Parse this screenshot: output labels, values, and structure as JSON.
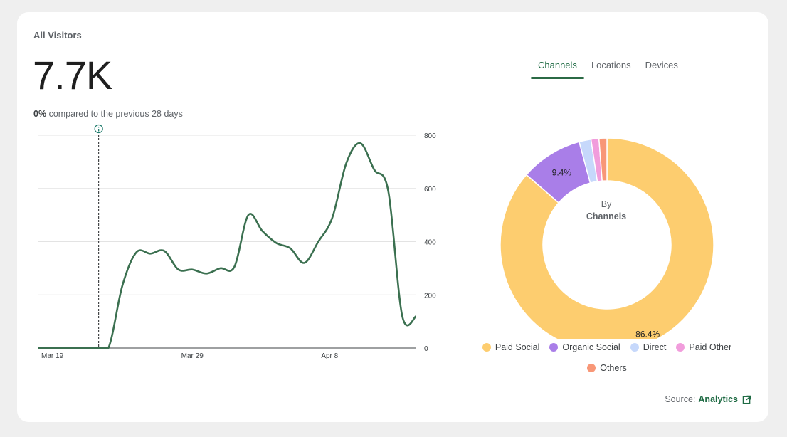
{
  "card": {
    "title": "All Visitors",
    "total": "7.7K",
    "change_pct": "0%",
    "change_text": "compared to the previous 28 days"
  },
  "tabs": [
    {
      "label": "Channels",
      "active": true
    },
    {
      "label": "Locations",
      "active": false
    },
    {
      "label": "Devices",
      "active": false
    }
  ],
  "donut_center": {
    "line1": "By",
    "line2": "Channels"
  },
  "source": {
    "prefix": "Source:",
    "link": "Analytics"
  },
  "colors": {
    "accent": "#2e6b47",
    "line": "#3b7050"
  },
  "chart_data": [
    {
      "type": "line",
      "x_ticks": [
        "Mar 19",
        "Mar 29",
        "Apr 8"
      ],
      "ylim": [
        0,
        800
      ],
      "y_ticks": [
        0,
        200,
        400,
        600,
        800
      ],
      "grid": true,
      "marker_x": "Mar 23",
      "series": [
        {
          "x": [
            "Mar 19",
            "Mar 20",
            "Mar 21",
            "Mar 22",
            "Mar 23",
            "Mar 24",
            "Mar 25",
            "Mar 26",
            "Mar 27",
            "Mar 28",
            "Mar 29",
            "Mar 30",
            "Mar 31",
            "Apr 1",
            "Apr 2",
            "Apr 3",
            "Apr 4",
            "Apr 5",
            "Apr 6",
            "Apr 7",
            "Apr 8",
            "Apr 9",
            "Apr 10",
            "Apr 11",
            "Apr 12",
            "Apr 13",
            "Apr 14",
            "Apr 15"
          ],
          "values": [
            0,
            0,
            0,
            0,
            0,
            0,
            235,
            360,
            355,
            365,
            295,
            295,
            280,
            300,
            305,
            500,
            440,
            395,
            375,
            320,
            400,
            490,
            695,
            770,
            670,
            590,
            120,
            120
          ]
        }
      ]
    },
    {
      "type": "pie",
      "donut": true,
      "labels": [
        "Paid Social",
        "Organic Social",
        "Direct",
        "Paid Other",
        "Others"
      ],
      "values": [
        86.4,
        9.4,
        1.8,
        1.2,
        1.2
      ],
      "data_labels": [
        "86.4%",
        "9.4%",
        "",
        "",
        ""
      ],
      "colors": [
        "#fdcd6f",
        "#a97ee8",
        "#c6d8fb",
        "#f19ddc",
        "#f89777"
      ],
      "legend": "bottom"
    }
  ]
}
